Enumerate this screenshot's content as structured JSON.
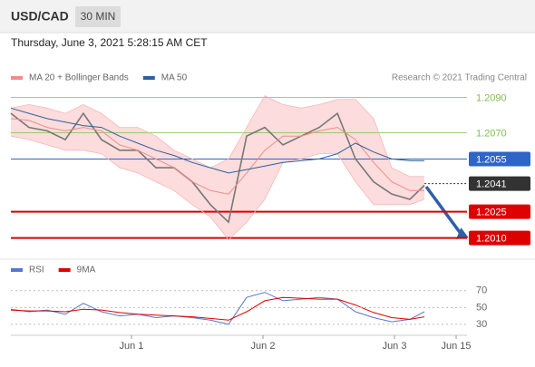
{
  "header": {
    "symbol": "USD/CAD",
    "timeframe": "30 MIN",
    "timestamp": "Thursday, June 3, 2021 5:28:15 AM CET"
  },
  "chart_data": [
    {
      "type": "line",
      "credit": "Research © 2021 Trading Central",
      "x": [
        0.083,
        0.221,
        0.359,
        0.497,
        0.634,
        0.772,
        0.91,
        1.048,
        1.186,
        1.324,
        1.462,
        1.6,
        1.738,
        1.876,
        2.014,
        2.152,
        2.29,
        2.428,
        2.566,
        2.703,
        2.841,
        2.979,
        3.117,
        3.228
      ],
      "xlim": [
        0.083,
        3.517
      ],
      "ylim": [
        1.2,
        1.2096
      ],
      "series": [
        {
          "color": "#777777",
          "values": [
            1.2081,
            1.2073,
            1.2071,
            1.2066,
            1.2081,
            1.2066,
            1.206,
            1.206,
            1.205,
            1.205,
            1.2042,
            1.2029,
            1.2019,
            1.2068,
            1.2073,
            1.2063,
            1.2068,
            1.2073,
            1.2081,
            1.2055,
            1.2042,
            1.2035,
            1.2032,
            1.204
          ]
        },
        {
          "name": "MA 20 + Bollinger Bands",
          "color": "#f08c8c",
          "values": [
            1.2078,
            1.2077,
            1.2073,
            1.2071,
            1.2073,
            1.2071,
            1.2063,
            1.206,
            1.2055,
            1.205,
            1.2042,
            1.2037,
            1.2035,
            1.2047,
            1.206,
            1.2068,
            1.2068,
            1.2071,
            1.2073,
            1.2066,
            1.2053,
            1.2042,
            1.2037,
            1.2037
          ]
        },
        {
          "color": "#fbd3d3",
          "values": [
            1.2084,
            1.2086,
            1.2084,
            1.2081,
            1.2086,
            1.2081,
            1.2073,
            1.2073,
            1.2068,
            1.206,
            1.2055,
            1.205,
            1.2055,
            1.2073,
            1.2091,
            1.2086,
            1.2084,
            1.2086,
            1.2089,
            1.2089,
            1.2078,
            1.205,
            1.2045,
            1.2045
          ]
        },
        {
          "color": "#fbd3d3",
          "values": [
            1.2068,
            1.2066,
            1.2063,
            1.206,
            1.206,
            1.2058,
            1.205,
            1.2047,
            1.2042,
            1.2037,
            1.2029,
            1.2022,
            1.2009,
            1.2019,
            1.2032,
            1.2053,
            1.2055,
            1.2058,
            1.2058,
            1.2042,
            1.2029,
            1.2029,
            1.2029,
            1.2032
          ]
        },
        {
          "name": "MA 50",
          "color": "#2f5f9e",
          "values": [
            1.2084,
            1.2081,
            1.2078,
            1.2076,
            1.2074,
            1.2073,
            1.2068,
            1.2064,
            1.206,
            1.2057,
            1.2053,
            1.205,
            1.2047,
            1.2049,
            1.2051,
            1.2053,
            1.2054,
            1.2055,
            1.2058,
            1.2064,
            1.2059,
            1.2055,
            1.2054,
            1.2054
          ]
        }
      ],
      "levels": [
        {
          "value": 1.209,
          "label": "1.2090",
          "color": "#7fbf4a",
          "style": "thin"
        },
        {
          "value": 1.207,
          "label": "1.2070",
          "color": "#7fbf4a",
          "style": "thin"
        },
        {
          "value": 1.2055,
          "label": "1.2055",
          "color": "#2f64c8",
          "style": "solid"
        },
        {
          "value": 1.2041,
          "label": "1.2041",
          "color": "#333333",
          "style": "dotted"
        },
        {
          "value": 1.2025,
          "label": "1.2025",
          "color": "#dd0000",
          "style": "thick"
        },
        {
          "value": 1.201,
          "label": "1.2010",
          "color": "#dd0000",
          "style": "thick"
        }
      ]
    },
    {
      "type": "line",
      "x": [
        0.083,
        0.221,
        0.359,
        0.497,
        0.634,
        0.772,
        0.91,
        1.048,
        1.186,
        1.324,
        1.462,
        1.6,
        1.738,
        1.876,
        2.014,
        2.152,
        2.29,
        2.428,
        2.566,
        2.703,
        2.841,
        2.979,
        3.117,
        3.228
      ],
      "xlim": [
        0.083,
        3.517
      ],
      "xticks": [
        {
          "value": 1,
          "label": "Jun 1"
        },
        {
          "value": 2,
          "label": "Jun 2"
        },
        {
          "value": 3,
          "label": "Jun 3"
        },
        {
          "value": 3.469,
          "label": "Jun 15"
        }
      ],
      "ylim": [
        17,
        87
      ],
      "yticks": [
        70,
        50,
        30
      ],
      "series": [
        {
          "name": "RSI",
          "color": "#5577cc",
          "values": [
            48,
            45,
            47,
            42,
            55,
            45,
            40,
            42,
            38,
            40,
            38,
            35,
            30,
            62,
            68,
            58,
            60,
            62,
            60,
            45,
            38,
            33,
            36,
            45
          ]
        },
        {
          "name": "9MA",
          "color": "#dd0000",
          "values": [
            47,
            46,
            46,
            45,
            48,
            47,
            44,
            42,
            41,
            40,
            39,
            37,
            35,
            45,
            58,
            62,
            61,
            60,
            60,
            53,
            44,
            38,
            36,
            39
          ]
        }
      ]
    }
  ]
}
